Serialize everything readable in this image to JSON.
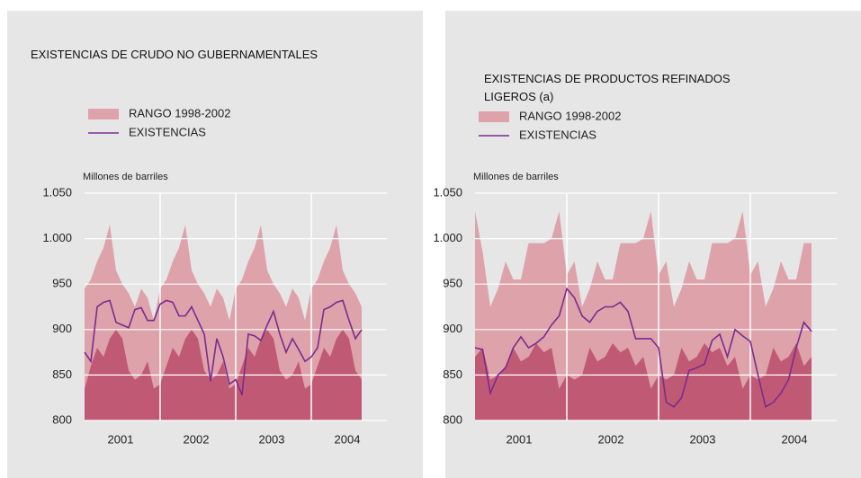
{
  "chart_data": [
    {
      "type": "range-line",
      "title": "EXISTENCIAS DE CRUDO NO GUBERNAMENTALES",
      "y_label": "Millones de barriles",
      "categories": [
        null,
        null,
        null,
        null,
        null,
        null,
        "2001",
        null,
        null,
        null,
        null,
        null,
        null,
        null,
        null,
        null,
        null,
        null,
        "2002",
        null,
        null,
        null,
        null,
        null,
        null,
        null,
        null,
        null,
        null,
        null,
        "2003",
        null,
        null,
        null,
        null,
        null,
        null,
        null,
        null,
        null,
        null,
        null,
        "2004",
        null,
        null
      ],
      "ylim": [
        800,
        1050
      ],
      "yticks": [
        800,
        850,
        900,
        950,
        {
          "value": 1000,
          "label": "1.000"
        },
        {
          "value": 1050,
          "label": "1.050"
        }
      ],
      "grid": true,
      "series": [
        {
          "name": "RANGO 1998-2002",
          "color": "#dea2ab",
          "lower_color": "#c05a74",
          "upper": [
            945,
            955,
            975,
            990,
            1015,
            965,
            950,
            940,
            925,
            945,
            935,
            910,
            945,
            955,
            975,
            990,
            1015,
            965,
            950,
            940,
            925,
            945,
            935,
            910,
            945,
            955,
            975,
            990,
            1015,
            965,
            950,
            940,
            925,
            945,
            935,
            910,
            945,
            955,
            975,
            990,
            1015,
            965,
            950,
            940,
            925
          ],
          "lower": [
            835,
            860,
            880,
            870,
            890,
            900,
            890,
            855,
            845,
            850,
            865,
            835,
            840,
            860,
            880,
            870,
            890,
            900,
            890,
            855,
            845,
            850,
            865,
            835,
            840,
            860,
            880,
            870,
            890,
            900,
            890,
            855,
            845,
            850,
            865,
            835,
            840,
            860,
            880,
            870,
            890,
            900,
            890,
            855,
            845
          ]
        },
        {
          "name": "EXISTENCIAS",
          "color": "#7b2b8f",
          "values": [
            875,
            865,
            925,
            930,
            932,
            908,
            905,
            902,
            922,
            924,
            910,
            910,
            928,
            932,
            930,
            915,
            915,
            925,
            910,
            895,
            843,
            890,
            870,
            840,
            845,
            828,
            895,
            893,
            888,
            905,
            920,
            895,
            875,
            890,
            878,
            865,
            870,
            880,
            922,
            925,
            930,
            932,
            910,
            890,
            900
          ]
        }
      ]
    },
    {
      "type": "range-line",
      "title": "EXISTENCIAS DE PRODUCTOS REFINADOS LIGEROS (a)",
      "y_label": "Millones de barriles",
      "categories": [
        null,
        null,
        null,
        null,
        null,
        null,
        "2001",
        null,
        null,
        null,
        null,
        null,
        null,
        null,
        null,
        null,
        null,
        null,
        "2002",
        null,
        null,
        null,
        null,
        null,
        null,
        null,
        null,
        null,
        null,
        null,
        "2003",
        null,
        null,
        null,
        null,
        null,
        null,
        null,
        null,
        null,
        null,
        null,
        "2004",
        null,
        null
      ],
      "ylim": [
        800,
        1050
      ],
      "yticks": [
        800,
        850,
        900,
        950,
        {
          "value": 1000,
          "label": "1.000"
        },
        {
          "value": 1050,
          "label": "1.050"
        }
      ],
      "grid": true,
      "series": [
        {
          "name": "RANGO 1998-2002",
          "color": "#dea2ab",
          "lower_color": "#c05a74",
          "upper": [
            1030,
            985,
            925,
            945,
            975,
            955,
            955,
            995,
            995,
            995,
            1000,
            1030,
            960,
            975,
            925,
            945,
            975,
            955,
            955,
            995,
            995,
            995,
            1000,
            1030,
            960,
            975,
            925,
            945,
            975,
            955,
            955,
            995,
            995,
            995,
            1000,
            1030,
            960,
            975,
            925,
            945,
            975,
            955,
            955,
            995,
            995
          ],
          "lower": [
            870,
            880,
            845,
            850,
            860,
            880,
            865,
            870,
            885,
            875,
            880,
            835,
            850,
            845,
            850,
            880,
            865,
            870,
            885,
            875,
            880,
            860,
            870,
            835,
            850,
            845,
            850,
            880,
            865,
            870,
            885,
            875,
            880,
            860,
            870,
            835,
            850,
            845,
            850,
            880,
            865,
            870,
            885,
            860,
            870
          ]
        },
        {
          "name": "EXISTENCIAS",
          "color": "#7b2b8f",
          "values": [
            880,
            878,
            830,
            850,
            858,
            880,
            892,
            880,
            885,
            892,
            905,
            915,
            945,
            935,
            915,
            908,
            920,
            925,
            925,
            930,
            920,
            890,
            890,
            890,
            880,
            820,
            815,
            825,
            855,
            858,
            862,
            888,
            895,
            870,
            900,
            893,
            887,
            850,
            815,
            820,
            830,
            845,
            880,
            908,
            898
          ]
        }
      ]
    }
  ]
}
